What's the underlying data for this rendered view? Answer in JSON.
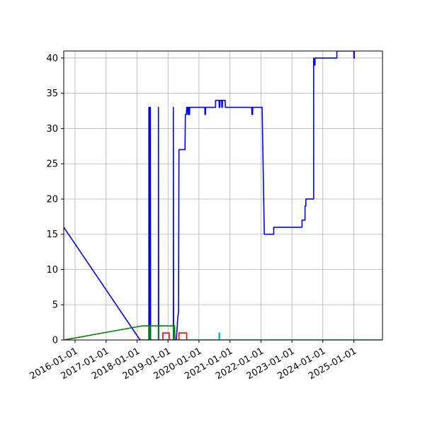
{
  "chart_data": {
    "type": "line",
    "title": "",
    "xlabel": "",
    "ylabel": "",
    "x_axis": "date",
    "xlim": [
      "2015-08-20",
      "2025-12-05"
    ],
    "ylim": [
      0,
      41
    ],
    "grid": true,
    "legend": "none",
    "x_ticks": [
      "2016-01-01",
      "2017-01-01",
      "2018-01-01",
      "2019-01-01",
      "2020-01-01",
      "2021-01-01",
      "2022-01-01",
      "2023-01-01",
      "2024-01-01",
      "2025-01-01"
    ],
    "y_ticks": [
      0,
      5,
      10,
      15,
      20,
      25,
      30,
      35,
      40
    ],
    "series": [
      {
        "color": "#0000ff",
        "points": [
          [
            "2015-08-20",
            16
          ],
          [
            "2018-02-05",
            0
          ],
          [
            "2018-05-20",
            0
          ],
          [
            "2018-05-20",
            33
          ],
          [
            "2018-05-23",
            0
          ],
          [
            "2018-05-26",
            33
          ],
          [
            "2018-05-29",
            0
          ],
          [
            "2018-06-01",
            33
          ],
          [
            "2018-06-04",
            0
          ],
          [
            "2018-06-07",
            33
          ],
          [
            "2018-06-10",
            0
          ],
          [
            "2018-09-10",
            0
          ],
          [
            "2018-09-10",
            33
          ],
          [
            "2018-09-13",
            0
          ],
          [
            "2019-03-05",
            0
          ],
          [
            "2019-03-05",
            33
          ],
          [
            "2019-03-08",
            0
          ],
          [
            "2019-04-10",
            0
          ],
          [
            "2019-04-25",
            3
          ],
          [
            "2019-05-05",
            4
          ],
          [
            "2019-05-10",
            27
          ],
          [
            "2019-07-20",
            27
          ],
          [
            "2019-07-25",
            32
          ],
          [
            "2019-08-05",
            32
          ],
          [
            "2019-08-10",
            33
          ],
          [
            "2019-08-20",
            33
          ],
          [
            "2019-08-22",
            32
          ],
          [
            "2019-08-28",
            32
          ],
          [
            "2019-08-30",
            33
          ],
          [
            "2019-09-05",
            33
          ],
          [
            "2019-09-07",
            32
          ],
          [
            "2019-09-12",
            32
          ],
          [
            "2019-09-14",
            33
          ],
          [
            "2020-03-10",
            33
          ],
          [
            "2020-03-12",
            32
          ],
          [
            "2020-03-18",
            32
          ],
          [
            "2020-03-20",
            33
          ],
          [
            "2020-07-15",
            33
          ],
          [
            "2020-07-15",
            34
          ],
          [
            "2020-08-25",
            34
          ],
          [
            "2020-08-27",
            33
          ],
          [
            "2020-09-03",
            33
          ],
          [
            "2020-09-05",
            34
          ],
          [
            "2020-09-25",
            34
          ],
          [
            "2020-09-27",
            33
          ],
          [
            "2020-10-03",
            33
          ],
          [
            "2020-10-05",
            34
          ],
          [
            "2020-11-05",
            34
          ],
          [
            "2020-11-07",
            33
          ],
          [
            "2021-09-15",
            33
          ],
          [
            "2021-09-17",
            32
          ],
          [
            "2021-09-25",
            32
          ],
          [
            "2021-09-27",
            33
          ],
          [
            "2022-01-15",
            33
          ],
          [
            "2022-02-10",
            15
          ],
          [
            "2022-06-01",
            15
          ],
          [
            "2022-06-01",
            16
          ],
          [
            "2023-05-01",
            16
          ],
          [
            "2023-05-01",
            17
          ],
          [
            "2023-06-05",
            17
          ],
          [
            "2023-06-05",
            19
          ],
          [
            "2023-06-15",
            19
          ],
          [
            "2023-06-15",
            20
          ],
          [
            "2023-09-15",
            20
          ],
          [
            "2023-09-15",
            40
          ],
          [
            "2023-09-20",
            39
          ],
          [
            "2023-10-01",
            39
          ],
          [
            "2023-10-01",
            40
          ],
          [
            "2024-06-15",
            40
          ],
          [
            "2024-06-15",
            41
          ],
          [
            "2025-01-01",
            41
          ],
          [
            "2025-01-01",
            40
          ],
          [
            "2025-01-06",
            40
          ],
          [
            "2025-01-06",
            41
          ]
        ]
      },
      {
        "color": "#008000",
        "points": [
          [
            "2015-08-20",
            0
          ],
          [
            "2018-03-01",
            2
          ],
          [
            "2018-05-20",
            2
          ],
          [
            "2018-05-20",
            0
          ],
          [
            "2018-05-23",
            2
          ],
          [
            "2018-05-26",
            0
          ],
          [
            "2018-05-29",
            2
          ],
          [
            "2018-06-01",
            0
          ],
          [
            "2018-06-04",
            2
          ],
          [
            "2018-06-07",
            0
          ],
          [
            "2018-06-10",
            2
          ],
          [
            "2018-09-10",
            2
          ],
          [
            "2018-09-10",
            0
          ],
          [
            "2018-09-13",
            2
          ],
          [
            "2019-03-05",
            2
          ],
          [
            "2019-03-05",
            0
          ],
          [
            "2019-03-08",
            2
          ],
          [
            "2019-03-20",
            2
          ],
          [
            "2019-03-25",
            0
          ],
          [
            "2025-12-05",
            0
          ]
        ]
      },
      {
        "color": "#ff0000",
        "points": [
          [
            "2018-11-01",
            0
          ],
          [
            "2018-11-01",
            1
          ],
          [
            "2019-01-15",
            1
          ],
          [
            "2019-01-15",
            0
          ],
          [
            "2019-05-10",
            0
          ],
          [
            "2019-05-10",
            1
          ],
          [
            "2019-08-10",
            1
          ],
          [
            "2019-08-10",
            0
          ]
        ]
      },
      {
        "color": "#00bfbf",
        "points": [
          [
            "2019-08-10",
            0
          ],
          [
            "2020-08-25",
            0
          ],
          [
            "2020-08-25",
            1
          ],
          [
            "2020-09-01",
            1
          ],
          [
            "2020-09-01",
            0
          ],
          [
            "2025-12-05",
            0
          ]
        ]
      }
    ]
  }
}
